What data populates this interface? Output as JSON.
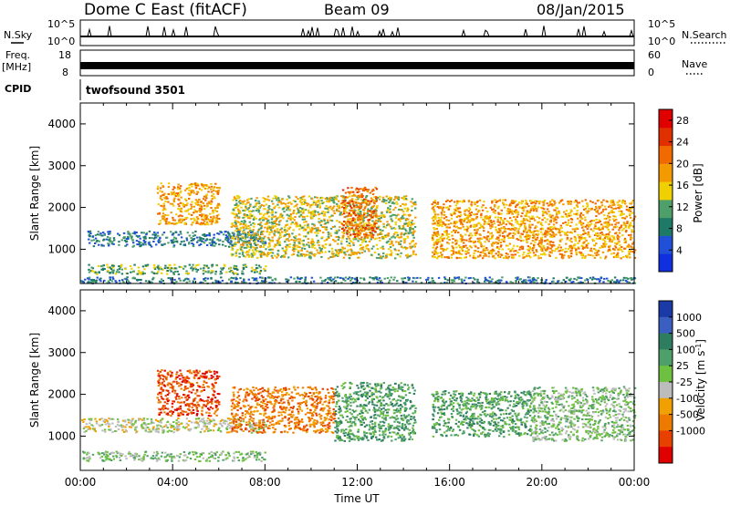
{
  "header": {
    "station": "Dome C East (fitACF)",
    "beam": "Beam 09",
    "date": "08/Jan/2015"
  },
  "summary_panels": {
    "nsky_label": "N.Sky",
    "nsky_ticks": [
      "10^5",
      "10^0"
    ],
    "nsearch_label": "N.Search",
    "nsearch_ticks": [
      "10^5",
      "10^0"
    ],
    "freq_label_line1": "Freq.",
    "freq_label_line2": "[MHz]",
    "freq_ticks": [
      "18",
      "8"
    ],
    "nave_label": "Nave",
    "nave_ticks": [
      "60",
      "0"
    ],
    "cpid_label": "CPID",
    "cpid_value": "twofsound 3501"
  },
  "colors": {
    "power_scale": [
      "#1030e0",
      "#2050d8",
      "#1e7a66",
      "#4f9f6a",
      "#f0d000",
      "#f29a00",
      "#f06a00",
      "#e03000",
      "#e00000"
    ],
    "velocity_scale": [
      "#1a3aa8",
      "#3a5fc0",
      "#2e7d60",
      "#4f9f6a",
      "#6ec040",
      "#bcbcbc",
      "#f0a000",
      "#ef7a00",
      "#e84000",
      "#e00000"
    ],
    "axis": "#000000"
  },
  "chart_data": [
    {
      "type": "heatmap",
      "title": "Power",
      "xlabel": "",
      "ylabel": "Slant Range [km]",
      "xlim": [
        "00:00",
        "24:00"
      ],
      "ylim": [
        180,
        4500
      ],
      "y_ticks": [
        "1000",
        "2000",
        "3000",
        "4000"
      ],
      "colorbar": {
        "label": "Power [dB]",
        "range": [
          0,
          30
        ],
        "tick_labels": [
          "4",
          "8",
          "12",
          "16",
          "20",
          "24",
          "28"
        ]
      },
      "echo_regions": [
        {
          "start_hour": 0.3,
          "end_hour": 8.0,
          "range_min_km": 1080,
          "range_max_km": 1450,
          "dominant_dB": 6
        },
        {
          "start_hour": 0.3,
          "end_hour": 8.0,
          "range_min_km": 420,
          "range_max_km": 650,
          "dominant_dB": 10
        },
        {
          "start_hour": 3.3,
          "end_hour": 6.0,
          "range_min_km": 1600,
          "range_max_km": 2600,
          "dominant_dB": 18
        },
        {
          "start_hour": 6.5,
          "end_hour": 14.5,
          "range_min_km": 800,
          "range_max_km": 2300,
          "dominant_dB": 16
        },
        {
          "start_hour": 11.3,
          "end_hour": 12.8,
          "range_min_km": 1300,
          "range_max_km": 2500,
          "dominant_dB": 24
        },
        {
          "start_hour": 15.2,
          "end_hour": 24.0,
          "range_min_km": 800,
          "range_max_km": 2200,
          "dominant_dB": 18
        },
        {
          "start_hour": 0.0,
          "end_hour": 24.0,
          "range_min_km": 200,
          "range_max_km": 350,
          "dominant_dB": 8
        }
      ]
    },
    {
      "type": "heatmap",
      "title": "Velocity",
      "xlabel": "Time UT",
      "ylabel": "Slant Range [km]",
      "xlim": [
        "00:00",
        "24:00"
      ],
      "ylim": [
        180,
        4500
      ],
      "x_ticks": [
        "00:00",
        "04:00",
        "08:00",
        "12:00",
        "16:00",
        "20:00",
        "00:00"
      ],
      "y_ticks": [
        "1000",
        "2000",
        "3000",
        "4000"
      ],
      "colorbar": {
        "label": "Velocity [m s",
        "label_superscript": "-1",
        "label_close": "]",
        "tick_labels": [
          "1000",
          "500",
          "100",
          "25",
          "-25",
          "-100",
          "-500",
          "-1000"
        ]
      },
      "echo_regions": [
        {
          "start_hour": 0.0,
          "end_hour": 8.0,
          "range_min_km": 1100,
          "range_max_km": 1450,
          "dominant_mps": 0
        },
        {
          "start_hour": 0.0,
          "end_hour": 8.0,
          "range_min_km": 420,
          "range_max_km": 650,
          "dominant_mps": 80
        },
        {
          "start_hour": 3.3,
          "end_hour": 6.0,
          "range_min_km": 1500,
          "range_max_km": 2600,
          "dominant_mps": -300
        },
        {
          "start_hour": 6.5,
          "end_hour": 11.0,
          "range_min_km": 1100,
          "range_max_km": 2200,
          "dominant_mps": -200
        },
        {
          "start_hour": 11.0,
          "end_hour": 14.5,
          "range_min_km": 900,
          "range_max_km": 2300,
          "dominant_mps": 150
        },
        {
          "start_hour": 15.2,
          "end_hour": 19.5,
          "range_min_km": 1000,
          "range_max_km": 2100,
          "dominant_mps": 120
        },
        {
          "start_hour": 19.5,
          "end_hour": 24.0,
          "range_min_km": 900,
          "range_max_km": 2200,
          "dominant_mps": 60
        }
      ]
    }
  ]
}
